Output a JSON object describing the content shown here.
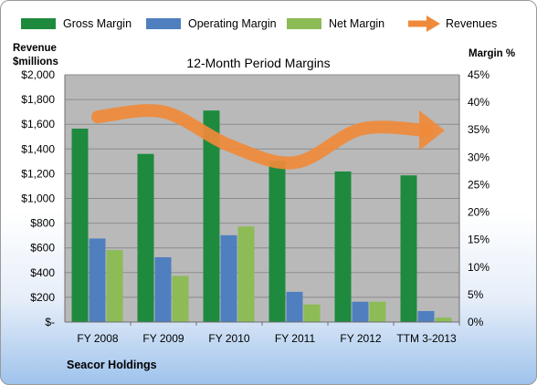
{
  "chart_data": {
    "type": "bar",
    "title": "12-Month Period Margins",
    "left_axis_label_line1": "Revenue",
    "left_axis_label_line2": "$millions",
    "right_axis_label": "Margin %",
    "footer": "Seacor Holdings",
    "categories": [
      "FY 2008",
      "FY 2009",
      "FY 2010",
      "FY 2011",
      "FY 2012",
      "TTM 3-2013"
    ],
    "series": [
      {
        "name": "Gross Margin",
        "axis": "right",
        "color": "#1e8a3e",
        "values": [
          35.2,
          30.6,
          38.5,
          29.3,
          27.4,
          26.7
        ]
      },
      {
        "name": "Operating Margin",
        "axis": "right",
        "color": "#4f7fbf",
        "values": [
          15.2,
          11.8,
          15.8,
          5.5,
          3.7,
          2.0
        ]
      },
      {
        "name": "Net Margin",
        "axis": "right",
        "color": "#8dbb55",
        "values": [
          13.1,
          8.4,
          17.4,
          3.2,
          3.7,
          0.8
        ]
      },
      {
        "name": "Revenues",
        "axis": "left",
        "type": "line",
        "color": "#ef8a3a",
        "values": [
          1660,
          1700,
          1430,
          1290,
          1560,
          1550
        ]
      }
    ],
    "left_ylim": [
      0,
      2000
    ],
    "left_ticks": [
      "$2,000",
      "$1,800",
      "$1,600",
      "$1,400",
      "$1,200",
      "$1,000",
      "$800",
      "$600",
      "$400",
      "$200",
      "$-"
    ],
    "right_ylim": [
      0,
      45
    ],
    "right_ticks": [
      "45%",
      "40%",
      "35%",
      "30%",
      "25%",
      "20%",
      "15%",
      "10%",
      "5%",
      "0%"
    ],
    "grid": true,
    "legend_position": "top"
  }
}
